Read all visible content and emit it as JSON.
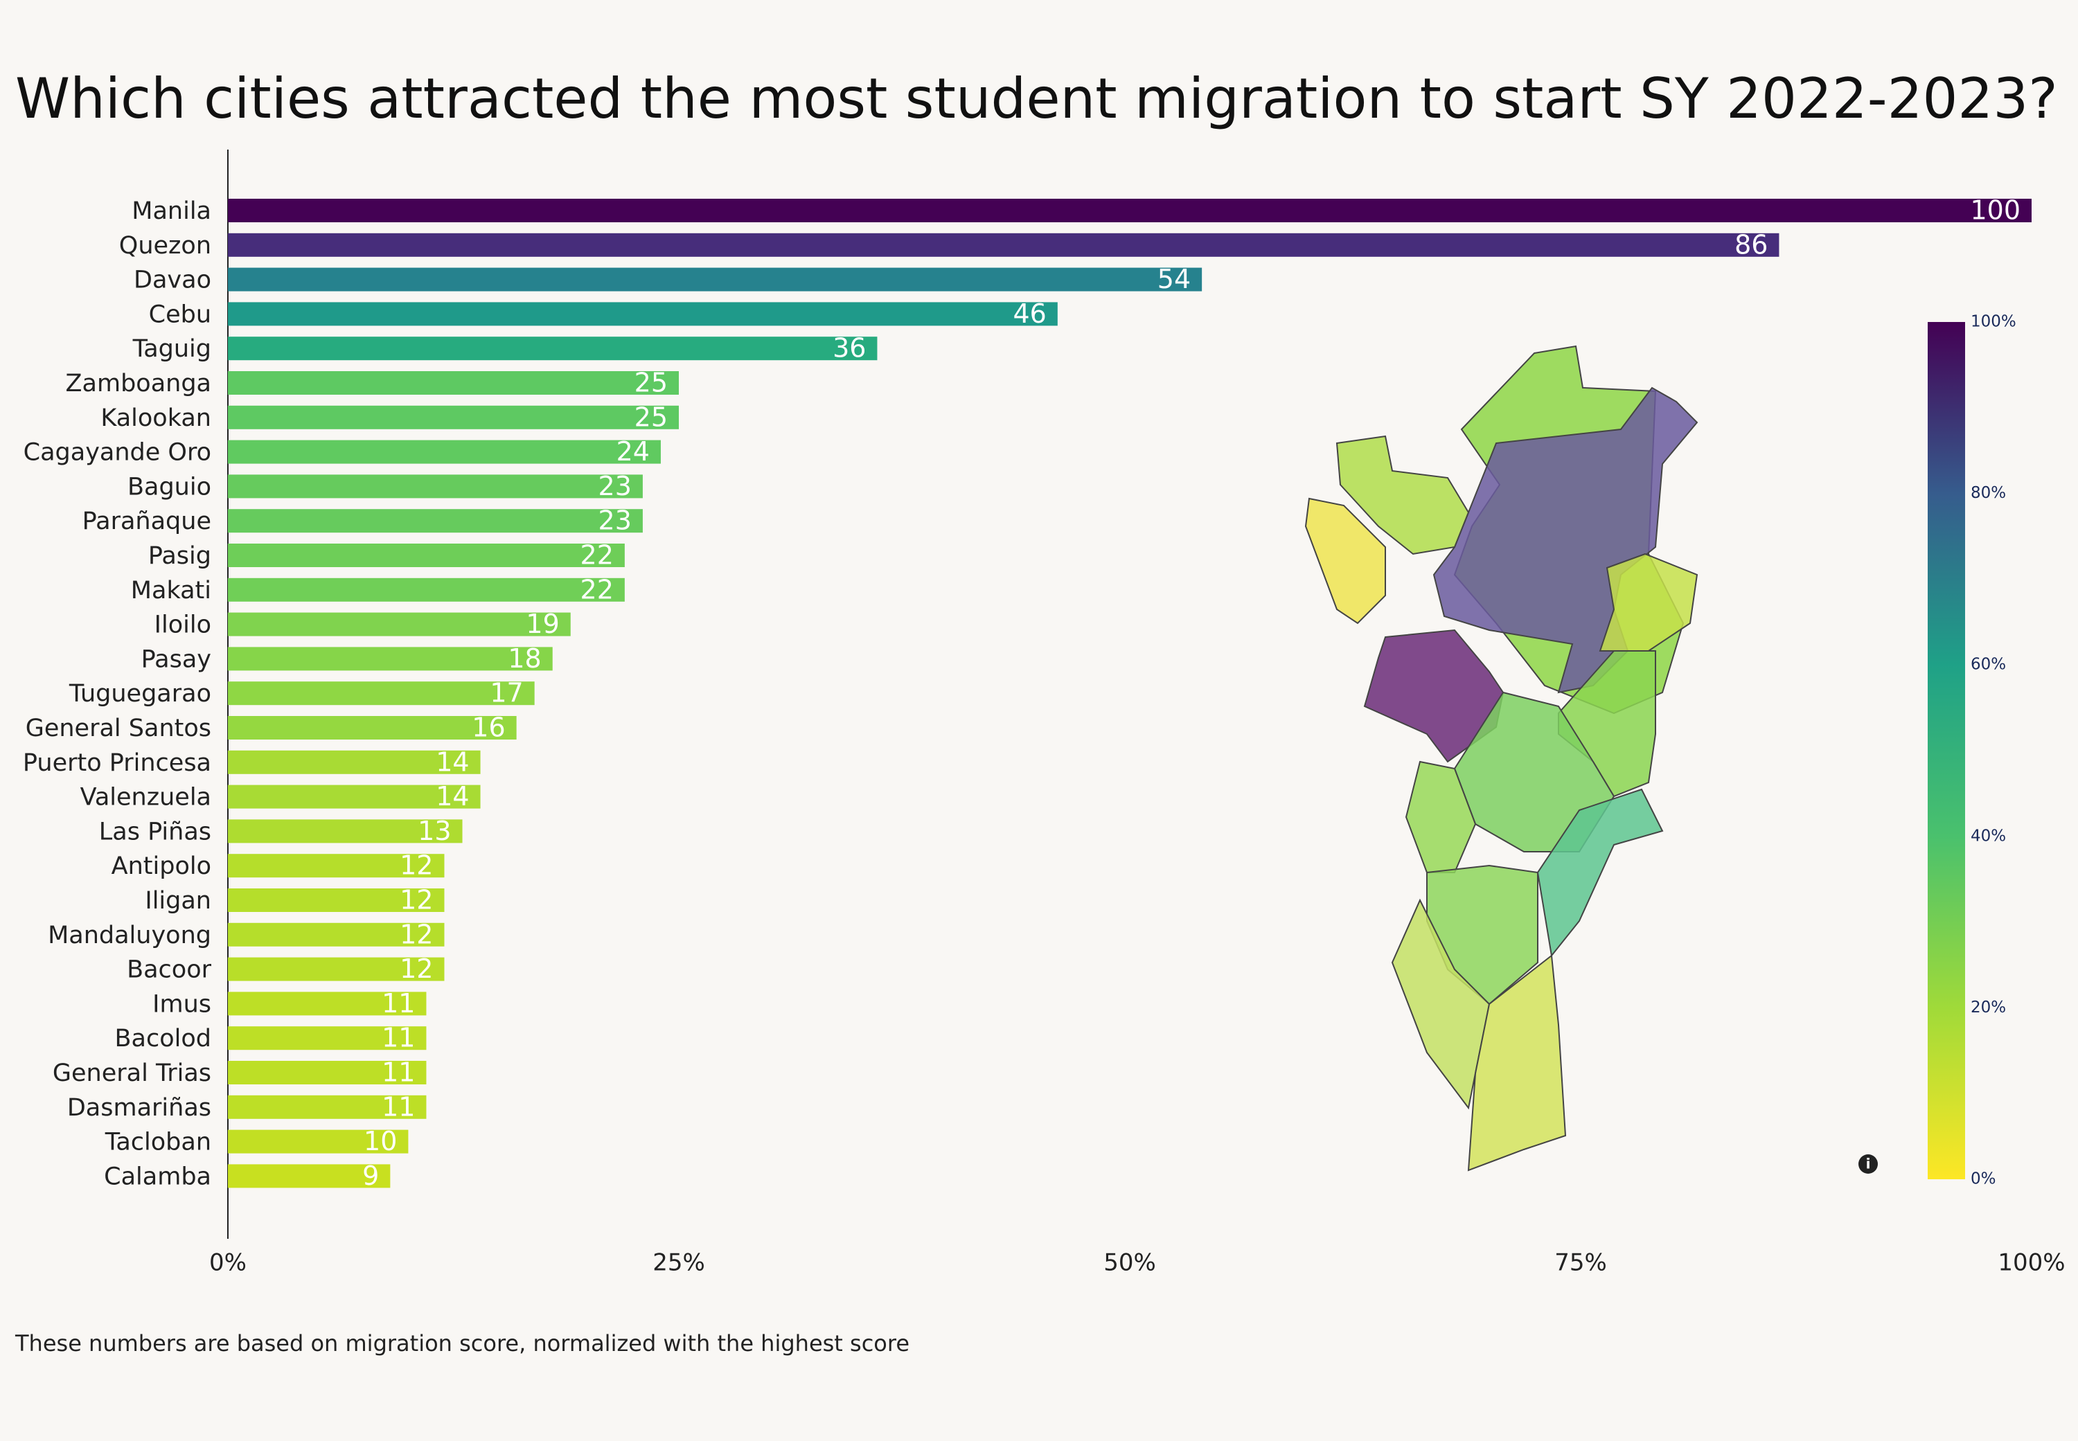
{
  "chart_data": {
    "type": "hbar",
    "title": "Which cities attracted the most student migration to start SY 2022-2023?",
    "footnote": "These numbers are based on migration score, normalized with the highest score",
    "categories": [
      "Manila",
      "Quezon",
      "Davao",
      "Cebu",
      "Taguig",
      "Zamboanga",
      "Kalookan",
      "Cagayande Oro",
      "Baguio",
      "Parañaque",
      "Pasig",
      "Makati",
      "Iloilo",
      "Pasay",
      "Tuguegarao",
      "General Santos",
      "Puerto Princesa",
      "Valenzuela",
      "Las Piñas",
      "Antipolo",
      "Iligan",
      "Mandaluyong",
      "Bacoor",
      "Imus",
      "Bacolod",
      "General Trias",
      "Dasmariñas",
      "Tacloban",
      "Calamba"
    ],
    "values": [
      100,
      86,
      54,
      46,
      36,
      25,
      25,
      24,
      23,
      23,
      22,
      22,
      19,
      18,
      17,
      16,
      14,
      14,
      13,
      12,
      12,
      12,
      12,
      11,
      11,
      11,
      11,
      10,
      9
    ],
    "colors": [
      "#440154",
      "#472d7b",
      "#26828e",
      "#1f9a8a",
      "#27ab7f",
      "#5ec962",
      "#5ec962",
      "#60ca60",
      "#66cb5d",
      "#66cb5d",
      "#6ece58",
      "#70cf57",
      "#80d34e",
      "#86d549",
      "#8fd744",
      "#95d840",
      "#a8db34",
      "#a8db34",
      "#aedc30",
      "#b5de2b",
      "#b5de2b",
      "#b5de2b",
      "#b8de29",
      "#bddf26",
      "#bddf26",
      "#bddf26",
      "#bddf26",
      "#c2df23",
      "#c8e020"
    ],
    "xlim": [
      0,
      100
    ],
    "xticks": [
      {
        "value": 0,
        "label": "0%"
      },
      {
        "value": 25,
        "label": "25%"
      },
      {
        "value": 50,
        "label": "50%"
      },
      {
        "value": 75,
        "label": "75%"
      },
      {
        "value": 100,
        "label": "100%"
      }
    ],
    "colorbar": {
      "range": [
        0,
        100
      ],
      "ticks": [
        {
          "value": 0,
          "label": "0%"
        },
        {
          "value": 20,
          "label": "20%"
        },
        {
          "value": 40,
          "label": "40%"
        },
        {
          "value": 60,
          "label": "60%"
        },
        {
          "value": 80,
          "label": "80%"
        },
        {
          "value": 100,
          "label": "100%"
        }
      ]
    }
  }
}
